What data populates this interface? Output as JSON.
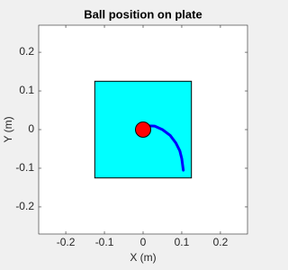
{
  "chart_data": {
    "type": "line",
    "title": "Ball position on plate",
    "xlabel": "X (m)",
    "ylabel": "Y (m)",
    "xlim": [
      -0.27,
      0.27
    ],
    "ylim": [
      -0.27,
      0.27
    ],
    "xticks": [
      -0.2,
      -0.1,
      0,
      0.1,
      0.2
    ],
    "yticks": [
      -0.2,
      -0.1,
      0,
      0.1,
      0.2
    ],
    "plate": {
      "x": [
        -0.125,
        0.125
      ],
      "y": [
        -0.125,
        0.125
      ],
      "color": "#00ffff"
    },
    "ball": {
      "x": 0,
      "y": 0,
      "color": "#ff0000"
    },
    "series": [
      {
        "color": "#0000ff",
        "x": [
          0.01,
          0.03,
          0.05,
          0.07,
          0.085,
          0.095,
          0.1,
          0.102,
          0.104
        ],
        "y": [
          0.01,
          0.009,
          0.0,
          -0.015,
          -0.035,
          -0.055,
          -0.075,
          -0.09,
          -0.105
        ]
      }
    ]
  }
}
